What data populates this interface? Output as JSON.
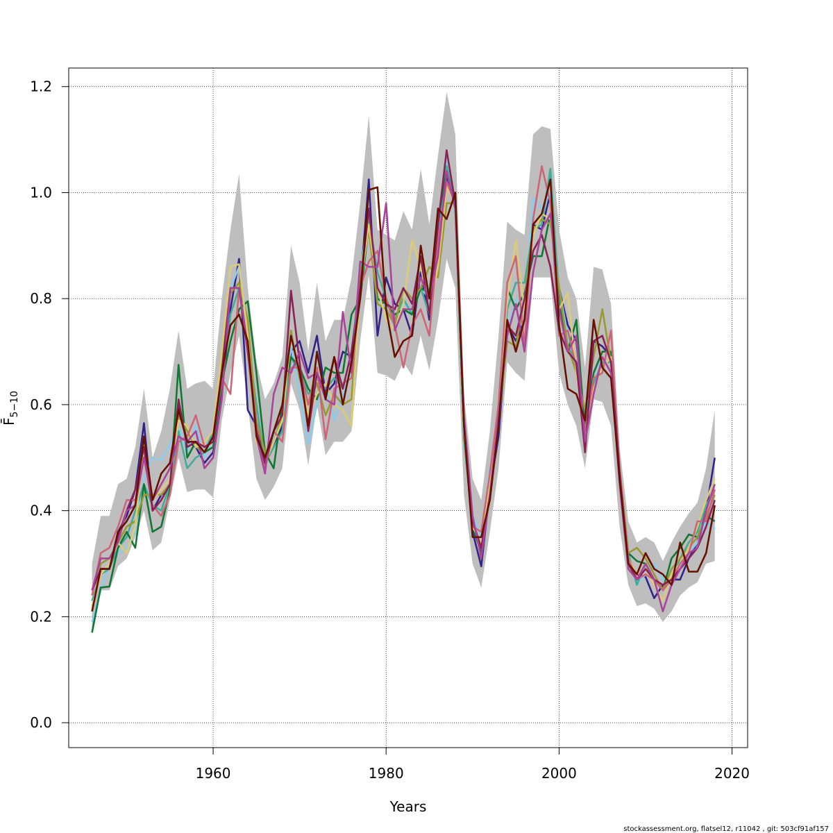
{
  "chart_data": {
    "type": "line",
    "title": "",
    "xlabel": "Years",
    "ylabel": "F̄",
    "ylabel_subscript": "5−10",
    "xlim": [
      1943.3,
      1922.0
    ],
    "ylim": [
      -0.047,
      1.235
    ],
    "x_ticks": [
      "1960",
      "1980",
      "2000",
      "2020"
    ],
    "y_ticks": [
      "0.0",
      "0.2",
      "0.4",
      "0.6",
      "0.8",
      "1.0",
      "1.2"
    ],
    "grid": true,
    "band": {
      "color": "#bebebe",
      "x": [
        1946,
        1947,
        1948,
        1949,
        1950,
        1951,
        1952,
        1953,
        1954,
        1955,
        1956,
        1957,
        1958,
        1959,
        1960,
        1961,
        1962,
        1963,
        1964,
        1965,
        1966,
        1967,
        1968,
        1969,
        1970,
        1971,
        1972,
        1973,
        1974,
        1975,
        1976,
        1977,
        1978,
        1979,
        1980,
        1981,
        1982,
        1983,
        1984,
        1985,
        1986,
        1987,
        1988,
        1989,
        1990,
        1991,
        1992,
        1993,
        1994,
        1995,
        1996,
        1997,
        1998,
        1999,
        2000,
        2001,
        2002,
        2003,
        2004,
        2005,
        2006,
        2007,
        2008,
        2009,
        2010,
        2011,
        2012,
        2013,
        2014,
        2015,
        2016,
        2017,
        2018
      ],
      "upper": [
        0.3,
        0.39,
        0.39,
        0.45,
        0.46,
        0.52,
        0.63,
        0.5,
        0.55,
        0.63,
        0.74,
        0.63,
        0.64,
        0.645,
        0.63,
        0.8,
        0.93,
        1.035,
        0.82,
        0.68,
        0.61,
        0.64,
        0.69,
        0.9,
        0.83,
        0.7,
        0.83,
        0.72,
        0.76,
        0.76,
        0.84,
        0.98,
        1.145,
        0.93,
        0.92,
        0.91,
        0.965,
        0.93,
        1.045,
        0.94,
        1.07,
        1.19,
        1.11,
        0.62,
        0.46,
        0.42,
        0.55,
        0.73,
        0.945,
        0.93,
        0.92,
        1.11,
        1.125,
        1.12,
        0.93,
        0.84,
        0.8,
        0.67,
        0.86,
        0.855,
        0.79,
        0.52,
        0.38,
        0.34,
        0.35,
        0.34,
        0.305,
        0.34,
        0.37,
        0.395,
        0.415,
        0.48,
        0.59
      ],
      "lower": [
        0.165,
        0.25,
        0.25,
        0.295,
        0.31,
        0.35,
        0.4,
        0.325,
        0.34,
        0.42,
        0.5,
        0.435,
        0.44,
        0.44,
        0.425,
        0.57,
        0.66,
        0.73,
        0.6,
        0.46,
        0.42,
        0.445,
        0.48,
        0.64,
        0.59,
        0.485,
        0.6,
        0.505,
        0.53,
        0.53,
        0.55,
        0.72,
        0.845,
        0.66,
        0.655,
        0.645,
        0.68,
        0.655,
        0.73,
        0.665,
        0.76,
        0.875,
        0.82,
        0.43,
        0.3,
        0.255,
        0.36,
        0.48,
        0.68,
        0.66,
        0.645,
        0.84,
        0.84,
        0.84,
        0.66,
        0.6,
        0.56,
        0.48,
        0.61,
        0.605,
        0.56,
        0.37,
        0.26,
        0.22,
        0.225,
        0.215,
        0.19,
        0.21,
        0.24,
        0.255,
        0.265,
        0.3,
        0.305
      ]
    },
    "series": [
      {
        "color": "#332288",
        "values": [
          0.25,
          0.29,
          0.29,
          0.36,
          0.39,
          0.44,
          0.565,
          0.4,
          0.43,
          0.44,
          0.6,
          0.53,
          0.52,
          0.49,
          0.51,
          0.62,
          0.78,
          0.875,
          0.59,
          0.56,
          0.49,
          0.52,
          0.56,
          0.7,
          0.72,
          0.66,
          0.73,
          0.62,
          0.64,
          0.7,
          0.69,
          0.82,
          1.025,
          0.73,
          0.84,
          0.79,
          0.78,
          0.73,
          0.85,
          0.76,
          0.95,
          1.03,
          0.98,
          0.55,
          0.36,
          0.295,
          0.44,
          0.54,
          0.75,
          0.72,
          0.76,
          0.94,
          0.93,
          1.0,
          0.82,
          0.75,
          0.72,
          0.56,
          0.72,
          0.71,
          0.69,
          0.46,
          0.31,
          0.28,
          0.275,
          0.235,
          0.26,
          0.27,
          0.27,
          0.31,
          0.34,
          0.4,
          0.5
        ]
      },
      {
        "color": "#88ccee",
        "values": [
          0.19,
          0.25,
          0.3,
          0.32,
          0.33,
          0.36,
          0.46,
          0.5,
          0.495,
          0.525,
          0.56,
          0.51,
          0.56,
          0.5,
          0.54,
          0.66,
          0.82,
          0.86,
          0.74,
          0.55,
          0.48,
          0.54,
          0.58,
          0.71,
          0.62,
          0.525,
          0.6,
          0.64,
          0.57,
          0.62,
          0.66,
          0.84,
          0.97,
          0.8,
          0.78,
          0.76,
          0.79,
          0.78,
          0.82,
          0.8,
          0.92,
          1.07,
          0.97,
          0.53,
          0.39,
          0.35,
          0.48,
          0.56,
          0.74,
          0.8,
          0.78,
          0.99,
          0.97,
          1.0,
          0.82,
          0.73,
          0.66,
          0.57,
          0.66,
          0.69,
          0.66,
          0.46,
          0.31,
          0.26,
          0.28,
          0.3,
          0.27,
          0.28,
          0.3,
          0.32,
          0.34,
          0.38,
          0.365
        ]
      },
      {
        "color": "#44aa99",
        "values": [
          0.23,
          0.28,
          0.29,
          0.33,
          0.35,
          0.4,
          0.45,
          0.41,
          0.4,
          0.45,
          0.55,
          0.48,
          0.5,
          0.51,
          0.55,
          0.64,
          0.77,
          0.82,
          0.72,
          0.6,
          0.49,
          0.52,
          0.55,
          0.69,
          0.66,
          0.62,
          0.64,
          0.63,
          0.65,
          0.63,
          0.7,
          0.84,
          0.95,
          0.85,
          0.8,
          0.76,
          0.8,
          0.77,
          0.82,
          0.77,
          0.93,
          1.05,
          0.98,
          0.56,
          0.38,
          0.33,
          0.46,
          0.58,
          0.78,
          0.83,
          0.83,
          0.93,
          0.94,
          1.045,
          0.8,
          0.71,
          0.68,
          0.58,
          0.64,
          0.68,
          0.68,
          0.48,
          0.32,
          0.26,
          0.3,
          0.27,
          0.25,
          0.27,
          0.31,
          0.34,
          0.36,
          0.41,
          0.44
        ]
      },
      {
        "color": "#117733",
        "values": [
          0.17,
          0.255,
          0.257,
          0.33,
          0.36,
          0.33,
          0.45,
          0.36,
          0.37,
          0.44,
          0.675,
          0.5,
          0.53,
          0.51,
          0.52,
          0.64,
          0.72,
          0.78,
          0.795,
          0.66,
          0.51,
          0.48,
          0.6,
          0.69,
          0.67,
          0.63,
          0.61,
          0.67,
          0.66,
          0.66,
          0.77,
          0.8,
          0.94,
          0.8,
          0.79,
          0.77,
          0.78,
          0.77,
          0.82,
          0.81,
          0.95,
          1.04,
          0.97,
          0.54,
          0.37,
          0.32,
          0.45,
          0.6,
          0.82,
          0.78,
          0.81,
          0.88,
          0.88,
          0.96,
          0.79,
          0.7,
          0.76,
          0.55,
          0.66,
          0.7,
          0.7,
          0.47,
          0.32,
          0.305,
          0.3,
          0.27,
          0.25,
          0.31,
          0.33,
          0.355,
          0.35,
          0.39,
          0.38
        ]
      },
      {
        "color": "#999933",
        "values": [
          0.21,
          0.3,
          0.31,
          0.34,
          0.37,
          0.38,
          0.43,
          0.43,
          0.43,
          0.45,
          0.58,
          0.55,
          0.52,
          0.51,
          0.54,
          0.68,
          0.81,
          0.83,
          0.76,
          0.57,
          0.51,
          0.53,
          0.58,
          0.74,
          0.65,
          0.6,
          0.64,
          0.58,
          0.62,
          0.6,
          0.61,
          0.84,
          0.93,
          0.79,
          0.78,
          0.75,
          0.82,
          0.8,
          0.82,
          0.86,
          0.84,
          0.98,
          0.98,
          0.55,
          0.38,
          0.33,
          0.46,
          0.57,
          0.72,
          0.71,
          0.8,
          0.93,
          0.95,
          0.94,
          0.82,
          0.71,
          0.66,
          0.59,
          0.69,
          0.78,
          0.68,
          0.48,
          0.32,
          0.33,
          0.31,
          0.28,
          0.25,
          0.29,
          0.31,
          0.33,
          0.35,
          0.39,
          0.43
        ]
      },
      {
        "color": "#ddcc77",
        "values": [
          0.22,
          0.28,
          0.3,
          0.34,
          0.32,
          0.37,
          0.53,
          0.42,
          0.44,
          0.46,
          0.57,
          0.56,
          0.52,
          0.53,
          0.55,
          0.7,
          0.86,
          0.865,
          0.73,
          0.53,
          0.49,
          0.53,
          0.57,
          0.73,
          0.66,
          0.58,
          0.62,
          0.64,
          0.6,
          0.59,
          0.56,
          0.82,
          0.94,
          0.82,
          0.76,
          0.74,
          0.79,
          0.91,
          0.86,
          0.78,
          0.86,
          1.01,
          0.98,
          0.55,
          0.37,
          0.34,
          0.45,
          0.6,
          0.8,
          0.91,
          0.78,
          0.92,
          0.96,
          0.95,
          0.78,
          0.81,
          0.66,
          0.55,
          0.63,
          0.67,
          0.69,
          0.45,
          0.31,
          0.28,
          0.29,
          0.26,
          0.23,
          0.28,
          0.3,
          0.33,
          0.37,
          0.42,
          0.46
        ]
      },
      {
        "color": "#cc6677",
        "values": [
          0.24,
          0.32,
          0.33,
          0.37,
          0.42,
          0.42,
          0.5,
          0.41,
          0.39,
          0.43,
          0.53,
          0.54,
          0.58,
          0.52,
          0.53,
          0.65,
          0.62,
          0.82,
          0.71,
          0.56,
          0.48,
          0.55,
          0.53,
          0.67,
          0.67,
          0.6,
          0.67,
          0.535,
          0.63,
          0.64,
          0.65,
          0.82,
          0.87,
          0.89,
          0.8,
          0.75,
          0.67,
          0.75,
          0.78,
          0.73,
          0.91,
          1.02,
          0.98,
          0.56,
          0.37,
          0.36,
          0.47,
          0.6,
          0.83,
          0.88,
          0.71,
          0.95,
          1.05,
          0.98,
          0.73,
          0.74,
          0.67,
          0.55,
          0.65,
          0.66,
          0.74,
          0.48,
          0.31,
          0.27,
          0.28,
          0.27,
          0.25,
          0.27,
          0.3,
          0.32,
          0.38,
          0.38,
          0.44
        ]
      },
      {
        "color": "#882255",
        "values": [
          0.25,
          0.29,
          0.29,
          0.35,
          0.4,
          0.44,
          0.52,
          0.4,
          0.42,
          0.45,
          0.61,
          0.52,
          0.53,
          0.52,
          0.53,
          0.66,
          0.82,
          0.82,
          0.7,
          0.55,
          0.49,
          0.55,
          0.58,
          0.815,
          0.68,
          0.55,
          0.66,
          0.62,
          0.69,
          0.63,
          0.7,
          0.82,
          0.97,
          0.82,
          0.79,
          0.78,
          0.82,
          0.79,
          0.88,
          0.77,
          0.94,
          1.08,
          0.98,
          0.56,
          0.38,
          0.33,
          0.43,
          0.57,
          0.75,
          0.73,
          0.8,
          0.89,
          0.92,
          0.86,
          0.74,
          0.7,
          0.68,
          0.51,
          0.72,
          0.73,
          0.68,
          0.47,
          0.3,
          0.27,
          0.29,
          0.27,
          0.26,
          0.27,
          0.29,
          0.31,
          0.33,
          0.37,
          0.42
        ]
      },
      {
        "color": "#aa4499",
        "values": [
          0.25,
          0.31,
          0.31,
          0.34,
          0.4,
          0.41,
          0.5,
          0.42,
          0.45,
          0.48,
          0.54,
          0.53,
          0.55,
          0.48,
          0.5,
          0.61,
          0.82,
          0.82,
          0.71,
          0.54,
          0.47,
          0.62,
          0.67,
          0.66,
          0.7,
          0.65,
          0.66,
          0.61,
          0.6,
          0.775,
          0.66,
          0.87,
          0.86,
          0.86,
          0.98,
          0.74,
          0.78,
          0.78,
          0.84,
          0.8,
          0.88,
          1.04,
          0.97,
          0.58,
          0.39,
          0.31,
          0.43,
          0.58,
          0.73,
          0.79,
          0.7,
          0.85,
          0.93,
          0.96,
          0.78,
          0.7,
          0.73,
          0.53,
          0.62,
          0.69,
          0.66,
          0.45,
          0.29,
          0.27,
          0.3,
          0.27,
          0.21,
          0.26,
          0.29,
          0.32,
          0.33,
          0.4,
          0.45
        ]
      },
      {
        "color": "#661100",
        "values": [
          0.21,
          0.29,
          0.29,
          0.36,
          0.38,
          0.41,
          0.54,
          0.42,
          0.47,
          0.49,
          0.59,
          0.53,
          0.53,
          0.51,
          0.54,
          0.66,
          0.75,
          0.77,
          0.72,
          0.54,
          0.5,
          0.55,
          0.6,
          0.73,
          0.66,
          0.56,
          0.7,
          0.61,
          0.69,
          0.6,
          0.68,
          0.8,
          1.005,
          1.01,
          0.78,
          0.69,
          0.72,
          0.73,
          0.9,
          0.8,
          0.97,
          0.95,
          1.0,
          0.56,
          0.35,
          0.35,
          0.42,
          0.56,
          0.76,
          0.7,
          0.76,
          0.94,
          0.96,
          1.025,
          0.75,
          0.63,
          0.62,
          0.57,
          0.76,
          0.67,
          0.65,
          0.46,
          0.3,
          0.28,
          0.32,
          0.29,
          0.28,
          0.26,
          0.34,
          0.285,
          0.285,
          0.32,
          0.41
        ]
      }
    ]
  },
  "footer": {
    "text": "stockassessment.org, flatsel12, r11042 , git: 503cf91af157"
  }
}
